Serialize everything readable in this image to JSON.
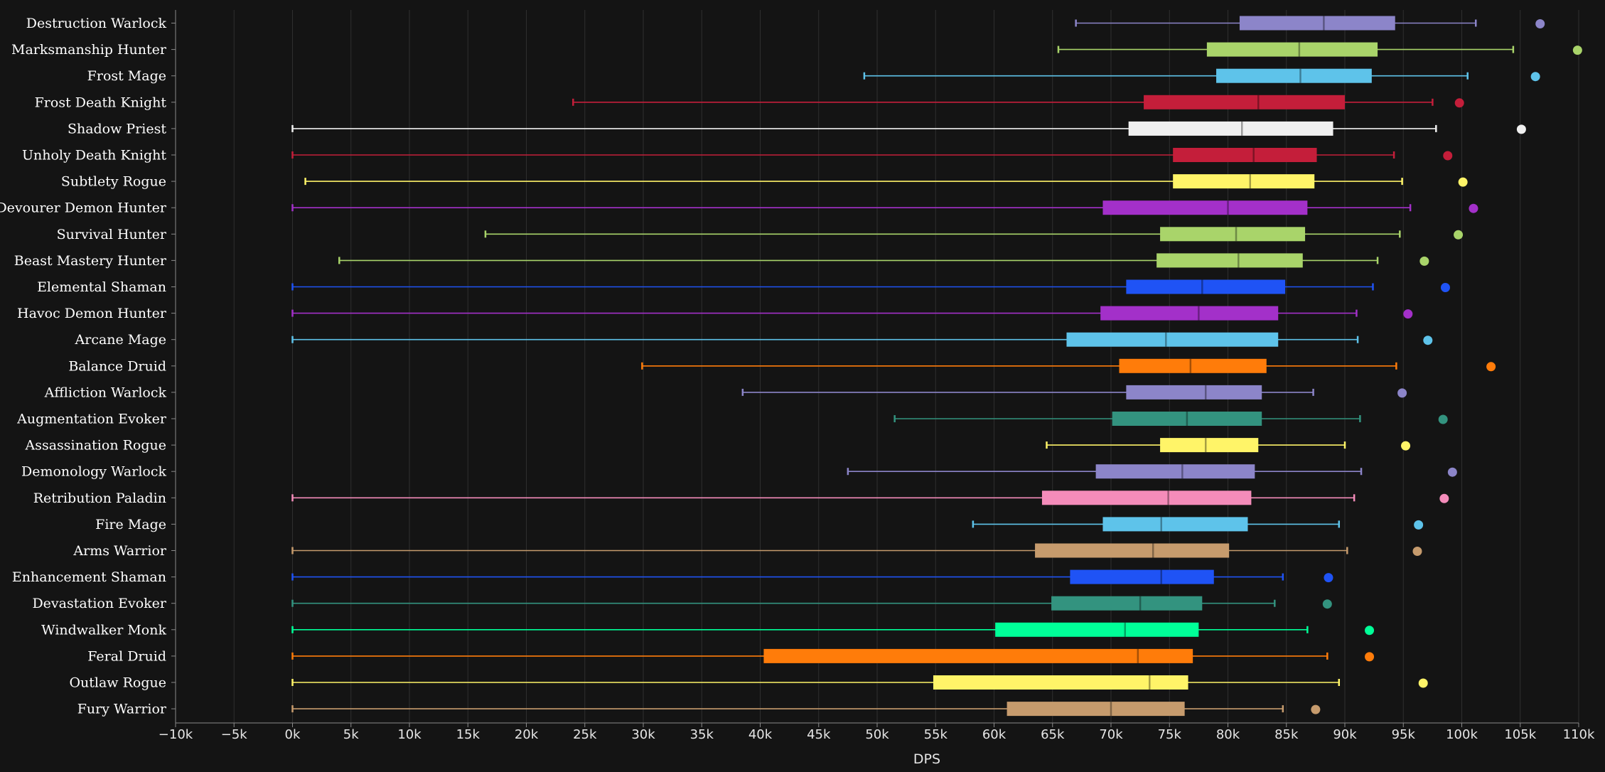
{
  "chart_data": {
    "type": "boxplot",
    "orientation": "horizontal",
    "xlabel": "DPS",
    "xlim": [
      -10000,
      110000
    ],
    "x_ticks": [
      -10000,
      -5000,
      0,
      5000,
      10000,
      15000,
      20000,
      25000,
      30000,
      35000,
      40000,
      45000,
      50000,
      55000,
      60000,
      65000,
      70000,
      75000,
      80000,
      85000,
      90000,
      95000,
      100000,
      105000,
      110000
    ],
    "x_tick_labels": [
      "−10k",
      "−5k",
      "0k",
      "5k",
      "10k",
      "15k",
      "20k",
      "25k",
      "30k",
      "35k",
      "40k",
      "45k",
      "50k",
      "55k",
      "60k",
      "65k",
      "70k",
      "75k",
      "80k",
      "85k",
      "90k",
      "95k",
      "100k",
      "105k",
      "110k"
    ],
    "grid": true,
    "series": [
      {
        "name": "Destruction Warlock",
        "color": "#8c85c9",
        "min": 67000,
        "q1": 81000,
        "median": 88200,
        "q3": 94300,
        "max": 101200,
        "outlier": 106700
      },
      {
        "name": "Marksmanship Hunter",
        "color": "#a9d46a",
        "min": 65500,
        "q1": 78200,
        "median": 86100,
        "q3": 92800,
        "max": 104400,
        "outlier": 109900
      },
      {
        "name": "Frost Mage",
        "color": "#5ec3ea",
        "min": 48900,
        "q1": 79000,
        "median": 86200,
        "q3": 92300,
        "max": 100500,
        "outlier": 106300
      },
      {
        "name": "Frost Death Knight",
        "color": "#c41e3a",
        "min": 24000,
        "q1": 72800,
        "median": 82600,
        "q3": 90000,
        "max": 97500,
        "outlier": 99800
      },
      {
        "name": "Shadow Priest",
        "color": "#f0f0f0",
        "min": 0,
        "q1": 71500,
        "median": 81200,
        "q3": 89000,
        "max": 97800,
        "outlier": 105100
      },
      {
        "name": "Unholy Death Knight",
        "color": "#c41e3a",
        "min": 0,
        "q1": 75300,
        "median": 82200,
        "q3": 87600,
        "max": 94200,
        "outlier": 98800
      },
      {
        "name": "Subtlety Rogue",
        "color": "#fff468",
        "min": 1100,
        "q1": 75300,
        "median": 81900,
        "q3": 87400,
        "max": 94900,
        "outlier": 100100
      },
      {
        "name": "Devourer Demon Hunter",
        "color": "#a330c9",
        "min": 0,
        "q1": 69300,
        "median": 80000,
        "q3": 86800,
        "max": 95600,
        "outlier": 101000
      },
      {
        "name": "Survival Hunter",
        "color": "#a9d46a",
        "min": 16500,
        "q1": 74200,
        "median": 80700,
        "q3": 86600,
        "max": 94700,
        "outlier": 99700
      },
      {
        "name": "Beast Mastery Hunter",
        "color": "#a9d46a",
        "min": 4000,
        "q1": 73900,
        "median": 80900,
        "q3": 86400,
        "max": 92800,
        "outlier": 96800
      },
      {
        "name": "Elemental Shaman",
        "color": "#1f53f5",
        "min": 0,
        "q1": 71300,
        "median": 77800,
        "q3": 84900,
        "max": 92400,
        "outlier": 98600
      },
      {
        "name": "Havoc Demon Hunter",
        "color": "#a330c9",
        "min": 0,
        "q1": 69100,
        "median": 77500,
        "q3": 84300,
        "max": 91000,
        "outlier": 95400
      },
      {
        "name": "Arcane Mage",
        "color": "#5ec3ea",
        "min": 0,
        "q1": 66200,
        "median": 74700,
        "q3": 84300,
        "max": 91100,
        "outlier": 97100
      },
      {
        "name": "Balance Druid",
        "color": "#ff7c0a",
        "min": 29900,
        "q1": 70700,
        "median": 76800,
        "q3": 83300,
        "max": 94400,
        "outlier": 102500
      },
      {
        "name": "Affliction Warlock",
        "color": "#8c85c9",
        "min": 38500,
        "q1": 71300,
        "median": 78100,
        "q3": 82900,
        "max": 87300,
        "outlier": 94900
      },
      {
        "name": "Augmentation Evoker",
        "color": "#33937f",
        "min": 51500,
        "q1": 70100,
        "median": 76500,
        "q3": 82900,
        "max": 91300,
        "outlier": 98400
      },
      {
        "name": "Assassination Rogue",
        "color": "#fff468",
        "min": 64500,
        "q1": 74200,
        "median": 78100,
        "q3": 82600,
        "max": 90000,
        "outlier": 95200
      },
      {
        "name": "Demonology Warlock",
        "color": "#8c85c9",
        "min": 47500,
        "q1": 68700,
        "median": 76100,
        "q3": 82300,
        "max": 91400,
        "outlier": 99200
      },
      {
        "name": "Retribution Paladin",
        "color": "#f48cba",
        "min": 0,
        "q1": 64100,
        "median": 74900,
        "q3": 82000,
        "max": 90800,
        "outlier": 98500
      },
      {
        "name": "Fire Mage",
        "color": "#5ec3ea",
        "min": 58200,
        "q1": 69300,
        "median": 74300,
        "q3": 81700,
        "max": 89500,
        "outlier": 96300
      },
      {
        "name": "Arms Warrior",
        "color": "#c69b6d",
        "min": 0,
        "q1": 63500,
        "median": 73600,
        "q3": 80100,
        "max": 90200,
        "outlier": 96200
      },
      {
        "name": "Enhancement Shaman",
        "color": "#1f53f5",
        "min": 0,
        "q1": 66500,
        "median": 74300,
        "q3": 78800,
        "max": 84700,
        "outlier": 88600
      },
      {
        "name": "Devastation Evoker",
        "color": "#33937f",
        "min": 0,
        "q1": 64900,
        "median": 72500,
        "q3": 77800,
        "max": 84000,
        "outlier": 88500
      },
      {
        "name": "Windwalker Monk",
        "color": "#00ff98",
        "min": 0,
        "q1": 60100,
        "median": 71200,
        "q3": 77500,
        "max": 86800,
        "outlier": 92100
      },
      {
        "name": "Feral Druid",
        "color": "#ff7c0a",
        "min": 0,
        "q1": 40300,
        "median": 72300,
        "q3": 77000,
        "max": 88500,
        "outlier": 92100
      },
      {
        "name": "Outlaw Rogue",
        "color": "#fff468",
        "min": 0,
        "q1": 54800,
        "median": 73300,
        "q3": 76600,
        "max": 89500,
        "outlier": 96700
      },
      {
        "name": "Fury Warrior",
        "color": "#c69b6d",
        "min": 0,
        "q1": 61100,
        "median": 70000,
        "q3": 76300,
        "max": 84700,
        "outlier": 87500
      }
    ]
  }
}
